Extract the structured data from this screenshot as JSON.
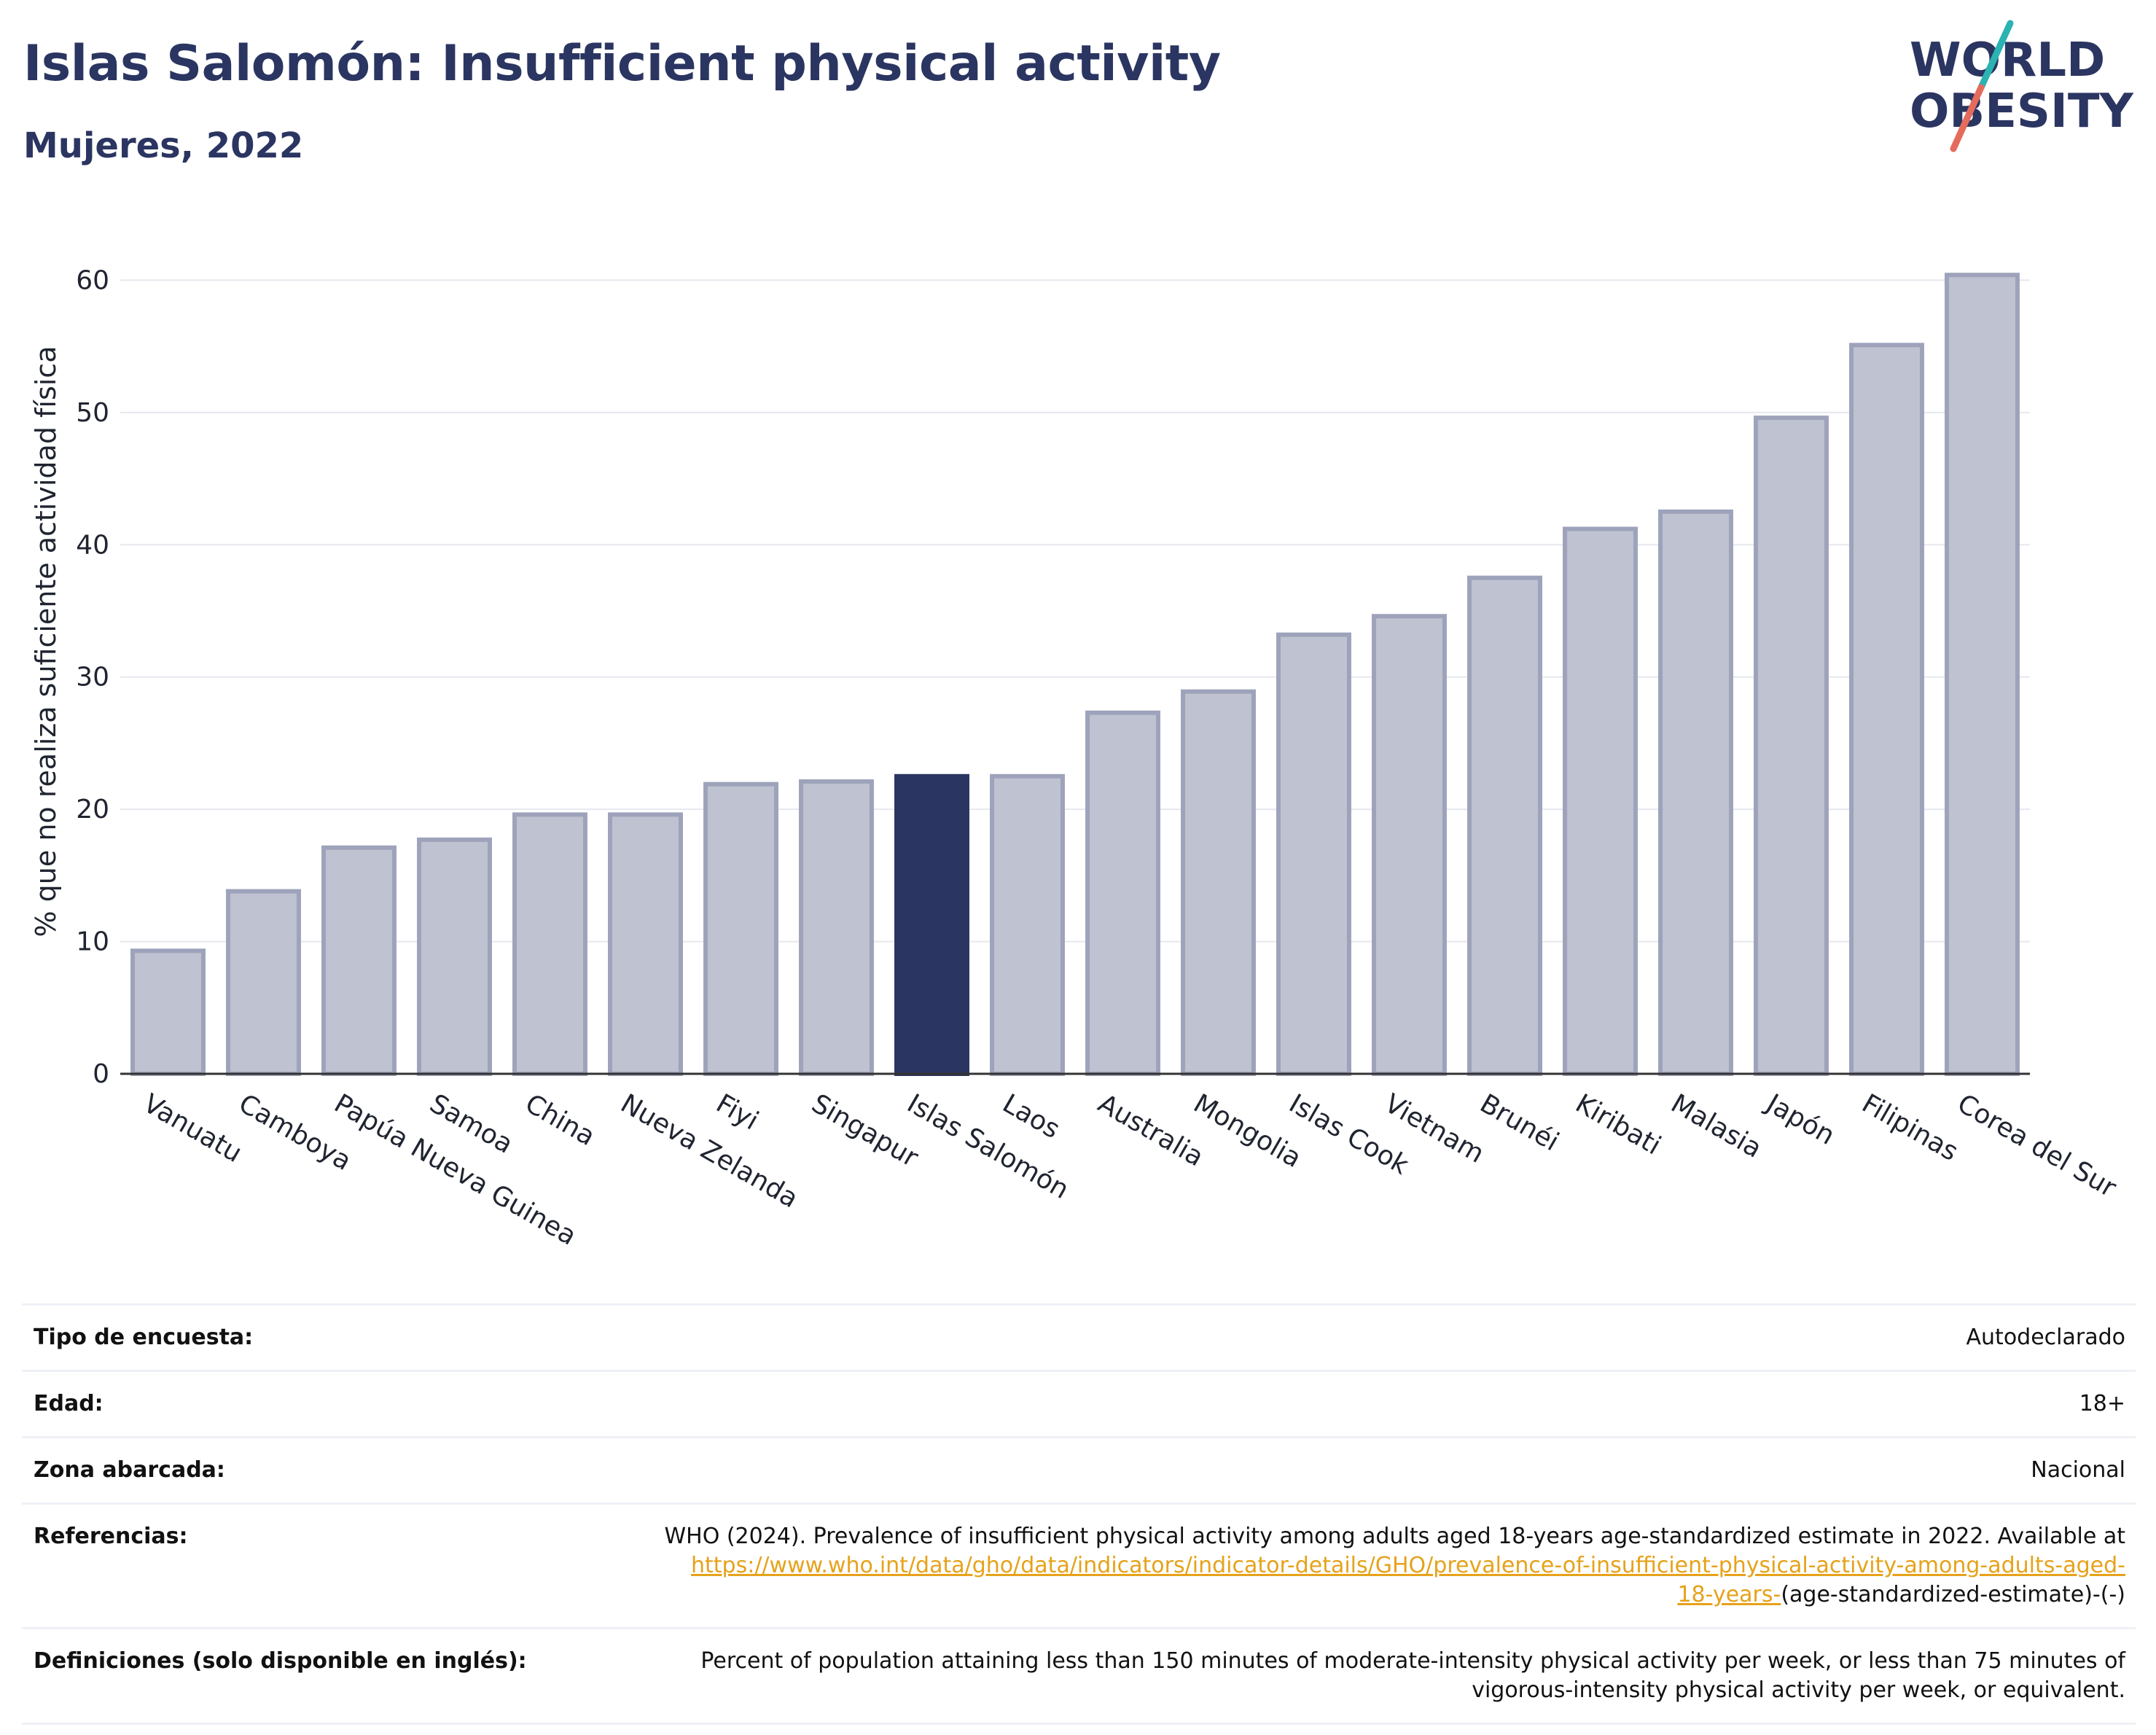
{
  "header": {
    "title": "Islas Salomón: Insufficient physical activity",
    "subtitle": "Mujeres, 2022"
  },
  "logo": {
    "line1": "WORLD",
    "line2": "OBESITY",
    "colors": {
      "text": "#2b3561",
      "slash_top": "#2ab3b1",
      "slash_bottom": "#e56b5d"
    }
  },
  "colors": {
    "bar": "#bfc2d0",
    "bar_border": "#9ea3bb",
    "highlight": "#2b3561",
    "grid": "#e6e8ef",
    "axis": "#333333",
    "link": "#e6a21a"
  },
  "chart_data": {
    "type": "bar",
    "ylabel": "% que no realiza suficiente actividad física",
    "ylim": [
      0,
      63
    ],
    "yticks": [
      0,
      10,
      20,
      30,
      40,
      50,
      60
    ],
    "grid": true,
    "highlight": "Islas Salomón",
    "categories": [
      "Vanuatu",
      "Camboya",
      "Papúa Nueva Guinea",
      "Samoa",
      "China",
      "Nueva Zelanda",
      "Fiyi",
      "Singapur",
      "Islas Salomón",
      "Laos",
      "Australia",
      "Mongolia",
      "Islas Cook",
      "Vietnam",
      "Brunéi",
      "Kiribati",
      "Malasia",
      "Japón",
      "Filipinas",
      "Corea del Sur"
    ],
    "values": [
      9.3,
      13.8,
      17.1,
      17.7,
      19.6,
      19.6,
      21.9,
      22.1,
      22.5,
      22.5,
      27.3,
      28.9,
      33.2,
      34.6,
      37.5,
      41.2,
      42.5,
      49.6,
      55.1,
      60.4
    ]
  },
  "info": {
    "survey": {
      "label": "Tipo de encuesta:",
      "value": "Autodeclarado"
    },
    "age": {
      "label": "Edad:",
      "value": "18+"
    },
    "area": {
      "label": "Zona abarcada:",
      "value": "Nacional"
    },
    "references": {
      "label": "Referencias:",
      "text": "WHO (2024). Prevalence of insufficient physical activity among adults aged 18-years age-standardized estimate in 2022. Available at",
      "link_line1": "https://www.who.int/data/gho/data/indicators/indicator-details/GHO/prevalence-of-insufficient-physical-activity-among-adults-aged-",
      "link_line2": "18-years-",
      "suffix": "(age-standardized-estimate)-(-)"
    },
    "definitions": {
      "label": "Definiciones (solo disponible en inglés):",
      "line1": "Percent of population attaining less than 150 minutes of moderate-intensity physical activity per week, or less than 75 minutes of",
      "line2": "vigorous-intensity physical activity per week, or equivalent."
    }
  }
}
